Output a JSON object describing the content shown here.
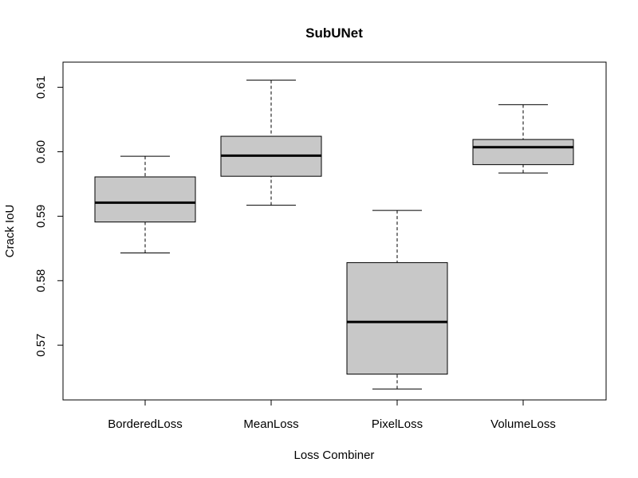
{
  "chart_data": {
    "type": "boxplot",
    "title": "SubUNet",
    "xlabel": "Loss Combiner",
    "ylabel": "Crack IoU",
    "categories": [
      "BorderedLoss",
      "MeanLoss",
      "PixelLoss",
      "VolumeLoss"
    ],
    "yticks": [
      "0.57",
      "0.58",
      "0.59",
      "0.60",
      "0.61"
    ],
    "ytick_values": [
      0.57,
      0.58,
      0.59,
      0.6,
      0.61
    ],
    "ylim": [
      0.5615,
      0.6139
    ],
    "grid": false,
    "box_fill": "#c8c8c8",
    "line_color": "#000000",
    "boxes": [
      {
        "category": "BorderedLoss",
        "whisker_low": 0.5843,
        "q1": 0.5891,
        "median": 0.5921,
        "q3": 0.5961,
        "whisker_high": 0.5993
      },
      {
        "category": "MeanLoss",
        "whisker_low": 0.5917,
        "q1": 0.5962,
        "median": 0.5994,
        "q3": 0.6024,
        "whisker_high": 0.6111
      },
      {
        "category": "PixelLoss",
        "whisker_low": 0.5632,
        "q1": 0.5655,
        "median": 0.5736,
        "q3": 0.5828,
        "whisker_high": 0.5909
      },
      {
        "category": "VolumeLoss",
        "whisker_low": 0.5967,
        "q1": 0.598,
        "median": 0.6007,
        "q3": 0.6019,
        "whisker_high": 0.6073
      }
    ]
  }
}
